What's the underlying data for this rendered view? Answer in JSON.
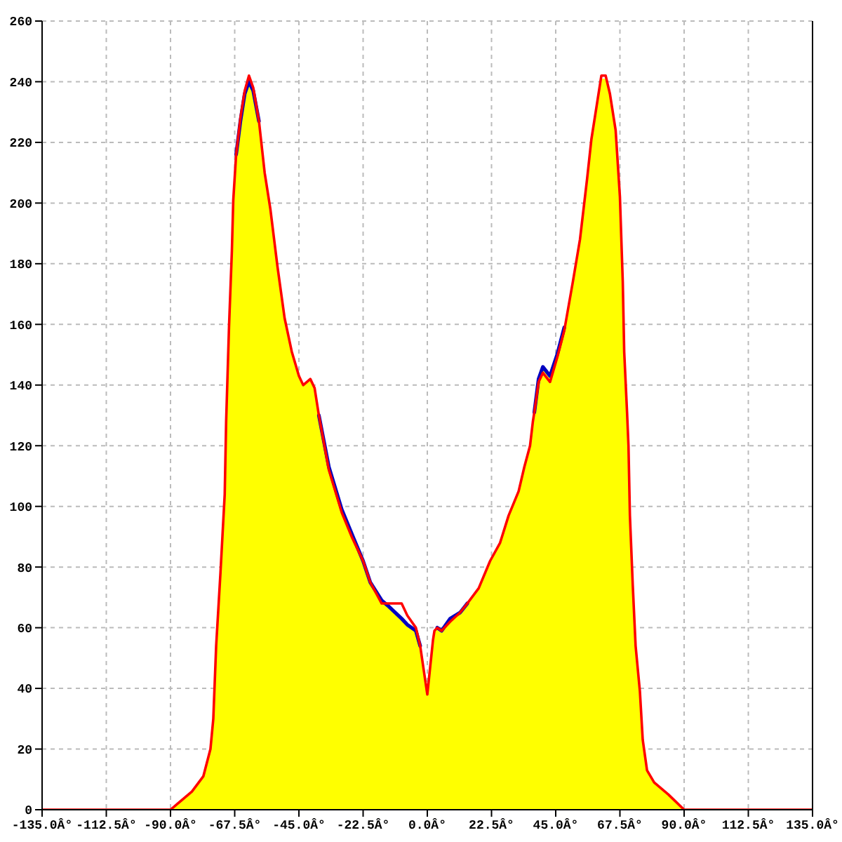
{
  "chart_data": {
    "type": "area",
    "x": [
      -135,
      -90,
      -82.5,
      -78.5,
      -76,
      -75,
      -74,
      -72.5,
      -71,
      -70.5,
      -69.5,
      -68.5,
      -68,
      -67,
      -65.5,
      -64,
      -62.5,
      -61,
      -59,
      -57,
      -55,
      -52.5,
      -50,
      -47.5,
      -45,
      -43.5,
      -41,
      -39.5,
      -38,
      -34.5,
      -30,
      -26.5,
      -22.5,
      -20,
      -16,
      -13.5,
      -9,
      -7,
      -4,
      -2.5,
      0,
      2,
      2.5,
      3.5,
      5,
      8,
      11.5,
      14,
      18,
      22,
      25.5,
      28.5,
      32,
      34,
      36,
      37,
      37.5,
      39,
      40.5,
      43,
      45.5,
      48,
      51,
      53.5,
      56,
      57.5,
      59.5,
      61,
      62.5,
      64,
      66,
      67.5,
      68.5,
      69,
      70,
      70.5,
      71,
      72,
      73,
      74.5,
      75.5,
      77,
      79.5,
      84.5,
      90,
      135
    ],
    "series": [
      {
        "type": "area",
        "color": "#ffff00",
        "values": [
          0,
          0,
          6,
          11,
          20,
          30,
          54,
          78,
          104,
          128,
          159,
          184,
          201,
          216,
          227,
          236,
          240,
          237,
          227,
          210,
          197,
          179,
          162,
          151,
          144,
          140,
          142,
          139,
          130,
          113,
          99,
          91,
          82,
          75,
          69,
          67,
          63,
          61,
          59,
          54,
          38,
          56,
          59,
          60,
          59,
          63,
          65,
          68,
          73,
          82,
          88,
          97,
          105,
          113,
          120,
          128,
          131,
          142,
          146,
          143,
          150,
          159,
          174,
          188,
          208,
          221,
          233,
          241,
          241,
          236,
          224,
          202,
          174,
          151,
          131,
          120,
          97,
          74,
          54,
          39,
          23,
          13,
          9,
          5,
          0,
          0
        ]
      },
      {
        "type": "line",
        "color": "#0000c0",
        "values": [
          null,
          null,
          null,
          null,
          null,
          null,
          null,
          null,
          null,
          null,
          null,
          null,
          null,
          216,
          227,
          236,
          240,
          237,
          227,
          null,
          null,
          null,
          null,
          null,
          null,
          null,
          null,
          null,
          130,
          113,
          99,
          91,
          82,
          75,
          69,
          67,
          63,
          61,
          59,
          54,
          null,
          null,
          null,
          60,
          59,
          63,
          65,
          68,
          null,
          null,
          null,
          null,
          null,
          null,
          null,
          null,
          131,
          142,
          146,
          143,
          150,
          159,
          null,
          null,
          null,
          null,
          null,
          null,
          null,
          null,
          null,
          null,
          null,
          null,
          null,
          null,
          null,
          null,
          null,
          null,
          null,
          null,
          null,
          null,
          null,
          null
        ]
      },
      {
        "type": "line",
        "color": "#ff0000",
        "values": [
          0,
          0,
          6,
          11,
          20,
          30,
          54,
          78,
          104,
          128,
          159,
          184,
          201,
          216,
          228,
          237,
          242,
          238,
          227,
          210,
          198,
          179,
          162,
          151,
          143,
          140,
          142,
          139,
          130,
          112,
          98,
          90,
          82,
          75,
          68,
          68,
          68,
          64,
          60,
          54,
          38,
          56,
          59,
          60,
          59,
          62,
          65,
          68,
          73,
          82,
          88,
          97,
          105,
          113,
          120,
          128,
          131,
          141,
          144,
          141,
          149,
          158,
          174,
          188,
          208,
          221,
          233,
          242,
          242,
          236,
          224,
          202,
          174,
          151,
          131,
          120,
          97,
          74,
          54,
          39,
          23,
          13,
          9,
          5,
          0,
          0
        ]
      }
    ],
    "xlim": [
      -135,
      135
    ],
    "xticks": [
      {
        "value": -135,
        "label": "-135.0Â°"
      },
      {
        "value": -112.5,
        "label": "-112.5Â°"
      },
      {
        "value": -90,
        "label": "-90.0Â°"
      },
      {
        "value": -67.5,
        "label": "-67.5Â°"
      },
      {
        "value": -45,
        "label": "-45.0Â°"
      },
      {
        "value": -22.5,
        "label": "-22.5Â°"
      },
      {
        "value": 0,
        "label": "0.0Â°"
      },
      {
        "value": 22.5,
        "label": "22.5Â°"
      },
      {
        "value": 45,
        "label": "45.0Â°"
      },
      {
        "value": 67.5,
        "label": "67.5Â°"
      },
      {
        "value": 90,
        "label": "90.0Â°"
      },
      {
        "value": 112.5,
        "label": "112.5Â°"
      },
      {
        "value": 135,
        "label": "135.0Â°"
      }
    ],
    "ylim": [
      0,
      260
    ],
    "yticks": [
      0,
      20,
      40,
      60,
      80,
      100,
      120,
      140,
      160,
      180,
      200,
      220,
      240,
      260
    ],
    "grid": true,
    "line_style": "solid"
  }
}
